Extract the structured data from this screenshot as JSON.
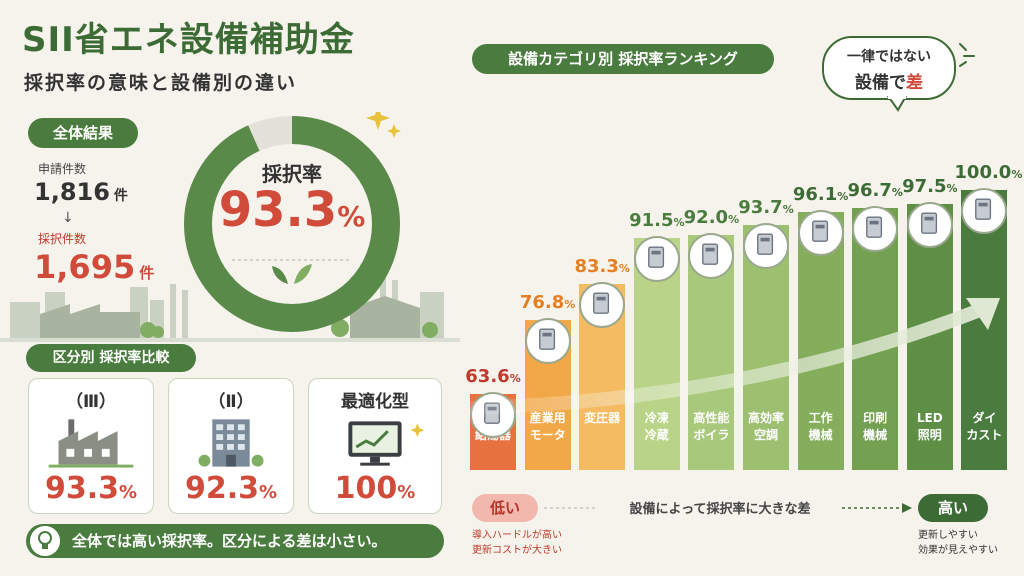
{
  "header": {
    "title": "SII省エネ設備補助金",
    "subtitle": "採択率の意味と設備別の違い"
  },
  "overall": {
    "pill": "全体結果",
    "applications_label": "申請件数",
    "applications_value": "1,816",
    "applications_unit": "件",
    "arrow": "↓",
    "adopted_label": "採択件数",
    "adopted_value": "1,695",
    "adopted_unit": "件",
    "donut_label": "採択率",
    "donut_value": "93.3",
    "donut_pct": "%",
    "donut_fraction": 0.933
  },
  "category": {
    "pill": "区分別 採択率比較",
    "cards": [
      {
        "title": "（Ⅲ）",
        "value": "93.3",
        "pct": "%",
        "icon": "factory-icon"
      },
      {
        "title": "（Ⅱ）",
        "value": "92.3",
        "pct": "%",
        "icon": "office-building-icon"
      },
      {
        "title": "最適化型",
        "value": "100",
        "pct": "%",
        "icon": "monitor-chart-icon"
      }
    ]
  },
  "note": "全体では高い採択率。区分による差は小さい。",
  "ranking": {
    "pill": "設備カテゴリ別 採択率ランキング",
    "bubble_line1": "一律ではない",
    "bubble_line2a": "設備で",
    "bubble_line2b": "差",
    "low": "低い",
    "high": "高い",
    "scale_text": "設備によって採択率に大きな差",
    "low_desc1": "導入ハードルが高い",
    "low_desc2": "更新コストが大きい",
    "high_desc1": "更新しやすい",
    "high_desc2": "効果が見えやすい"
  },
  "chart_data": {
    "type": "bar",
    "ylim": [
      0,
      100
    ],
    "categories": [
      "業務用給湯器",
      "産業用モータ",
      "変圧器",
      "冷凍冷蔵",
      "高性能ボイラ",
      "高効率空調",
      "工作機械",
      "印刷機械",
      "LED照明",
      "ダイカスト"
    ],
    "label_lines": [
      [
        "業務用",
        "給湯器"
      ],
      [
        "産業用",
        "モータ"
      ],
      [
        "変圧器"
      ],
      [
        "冷凍",
        "冷蔵"
      ],
      [
        "高性能",
        "ボイラ"
      ],
      [
        "高効率",
        "空調"
      ],
      [
        "工作",
        "機械"
      ],
      [
        "印刷",
        "機械"
      ],
      [
        "LED",
        "照明"
      ],
      [
        "ダイ",
        "カスト"
      ]
    ],
    "values": [
      63.6,
      76.8,
      83.3,
      91.5,
      92.0,
      93.7,
      96.1,
      96.7,
      97.5,
      100.0
    ],
    "value_labels": [
      "63.6",
      "76.8",
      "83.3",
      "91.5",
      "92.0",
      "93.7",
      "96.1",
      "96.7",
      "97.5",
      "100.0"
    ],
    "colors": [
      "#e8723f",
      "#f2a848",
      "#f4bb62",
      "#b9d488",
      "#a8c97b",
      "#9cc070",
      "#84ad5c",
      "#73a051",
      "#5f8f45",
      "#4a7c3f"
    ],
    "value_colors": [
      "#c0392b",
      "#e67e22",
      "#e67e22",
      "#4a7c3f",
      "#4a7c3f",
      "#4a7c3f",
      "#3d6b35",
      "#3d6b35",
      "#3d6b35",
      "#3d6b35"
    ]
  }
}
